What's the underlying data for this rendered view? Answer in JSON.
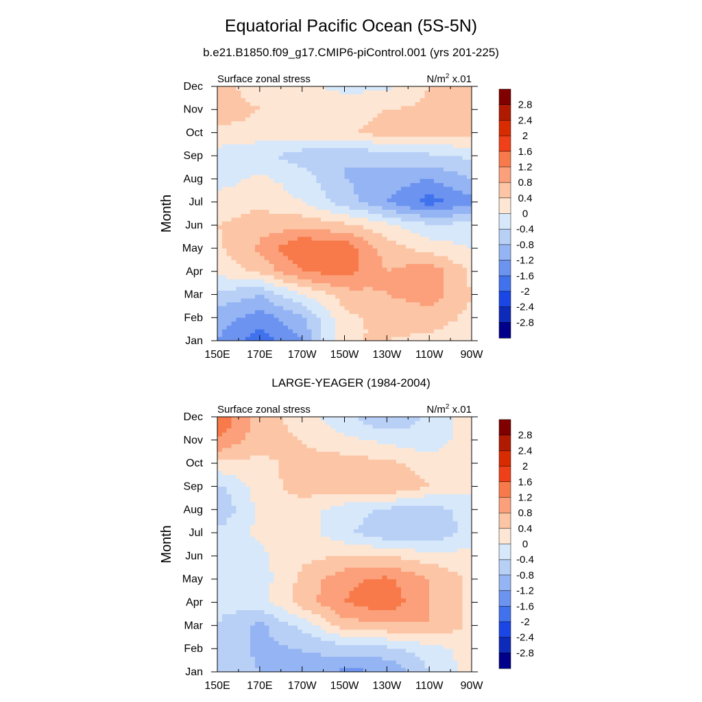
{
  "figure": {
    "title": "Equatorial Pacific Ocean (5S-5N)",
    "xtick_labels": [
      "150E",
      "170E",
      "170W",
      "150W",
      "130W",
      "110W",
      "90W"
    ],
    "ytick_labels": [
      "Jan",
      "Feb",
      "Mar",
      "Apr",
      "May",
      "Jun",
      "Jul",
      "Aug",
      "Sep",
      "Oct",
      "Nov",
      "Dec"
    ],
    "ylabel": "Month",
    "left_label": "Surface zonal stress",
    "units_base": "N/m",
    "units_exp": "2",
    "units_suffix": " x.01"
  },
  "colorbar": {
    "labels": [
      "2.8",
      "2.4",
      "2",
      "1.6",
      "1.2",
      "0.8",
      "0.4",
      "0",
      "-0.4",
      "-0.8",
      "-1.2",
      "-1.6",
      "-2",
      "-2.4",
      "-2.8"
    ],
    "colors": [
      "#800000",
      "#b01a00",
      "#d92b00",
      "#f0401a",
      "#f87a4a",
      "#fba07a",
      "#fcc6a6",
      "#fde6d4",
      "#d6e8fa",
      "#b8cff6",
      "#94b4f3",
      "#6c93ef",
      "#4172ee",
      "#1a46e6",
      "#0e2ab8",
      "#00008a"
    ]
  },
  "chart_data": [
    {
      "type": "heatmap",
      "subtitle": "b.e21.B1850.f09_g17.CMIP6-piControl.001 (yrs 201-225)",
      "x": [
        150,
        170,
        190,
        210,
        230,
        250,
        270
      ],
      "y": [
        "Jan",
        "Feb",
        "Mar",
        "Apr",
        "May",
        "Jun",
        "Jul",
        "Aug",
        "Sep",
        "Oct",
        "Nov",
        "Dec"
      ],
      "values": [
        [
          -1.2,
          -1.8,
          -1.2,
          0.4,
          0.4,
          0.3,
          0.2
        ],
        [
          -1.0,
          -1.4,
          -0.9,
          0.3,
          0.5,
          0.6,
          0.3
        ],
        [
          -0.5,
          -0.8,
          0.0,
          0.6,
          0.8,
          1.0,
          0.4
        ],
        [
          0.1,
          0.5,
          1.2,
          1.4,
          0.8,
          1.1,
          0.3
        ],
        [
          0.3,
          0.9,
          1.6,
          1.5,
          0.6,
          0.2,
          0.0
        ],
        [
          0.4,
          0.6,
          0.7,
          0.5,
          0.1,
          -0.3,
          -0.3
        ],
        [
          0.2,
          0.3,
          0.0,
          -0.6,
          -1.2,
          -1.8,
          -1.3
        ],
        [
          -0.2,
          0.1,
          -0.2,
          -0.8,
          -1.0,
          -1.2,
          -0.8
        ],
        [
          -0.2,
          -0.3,
          -0.6,
          -0.8,
          -0.6,
          -0.5,
          -0.3
        ],
        [
          0.3,
          0.2,
          0.2,
          0.3,
          0.6,
          0.6,
          0.5
        ],
        [
          0.7,
          0.4,
          0.3,
          0.2,
          0.4,
          0.5,
          0.5
        ],
        [
          0.5,
          0.2,
          0.1,
          -0.1,
          -0.1,
          0.4,
          0.5
        ]
      ],
      "xlim": [
        150,
        270
      ],
      "levels": [
        -2.8,
        -2.4,
        -2,
        -1.6,
        -1.2,
        -0.8,
        -0.4,
        0,
        0.4,
        0.8,
        1.2,
        1.6,
        2,
        2.4,
        2.8
      ]
    },
    {
      "type": "heatmap",
      "subtitle": "LARGE-YEAGER (1984-2004)",
      "x": [
        150,
        170,
        190,
        210,
        230,
        250,
        270
      ],
      "y": [
        "Jan",
        "Feb",
        "Mar",
        "Apr",
        "May",
        "Jun",
        "Jul",
        "Aug",
        "Sep",
        "Oct",
        "Nov",
        "Dec"
      ],
      "values": [
        [
          -0.5,
          -0.8,
          -0.9,
          -1.3,
          -1.2,
          -0.4,
          0.2
        ],
        [
          -0.5,
          -0.9,
          -0.8,
          -0.6,
          -0.5,
          -0.2,
          0.2
        ],
        [
          -0.4,
          -0.9,
          -0.3,
          0.6,
          0.7,
          0.8,
          0.3
        ],
        [
          -0.3,
          -0.2,
          0.6,
          1.2,
          1.5,
          0.8,
          0.3
        ],
        [
          -0.4,
          -0.2,
          0.5,
          1.1,
          1.3,
          0.8,
          0.3
        ],
        [
          -0.4,
          -0.1,
          0.3,
          0.4,
          0.4,
          0.2,
          0.1
        ],
        [
          -0.3,
          0.1,
          0.2,
          -0.3,
          -0.7,
          -0.8,
          -0.2
        ],
        [
          -0.8,
          0.1,
          0.2,
          -0.2,
          -0.5,
          -0.6,
          -0.2
        ],
        [
          -0.5,
          0.2,
          0.6,
          0.6,
          0.8,
          0.4,
          0.1
        ],
        [
          0.3,
          0.3,
          0.5,
          0.6,
          0.5,
          0.2,
          0.2
        ],
        [
          1.2,
          0.6,
          0.4,
          0.1,
          -0.1,
          -0.3,
          0.3
        ],
        [
          1.6,
          0.6,
          0.2,
          -0.3,
          -0.8,
          -0.3,
          0.2
        ]
      ],
      "xlim": [
        150,
        270
      ],
      "levels": [
        -2.8,
        -2.4,
        -2,
        -1.6,
        -1.2,
        -0.8,
        -0.4,
        0,
        0.4,
        0.8,
        1.2,
        1.6,
        2,
        2.4,
        2.8
      ]
    }
  ]
}
